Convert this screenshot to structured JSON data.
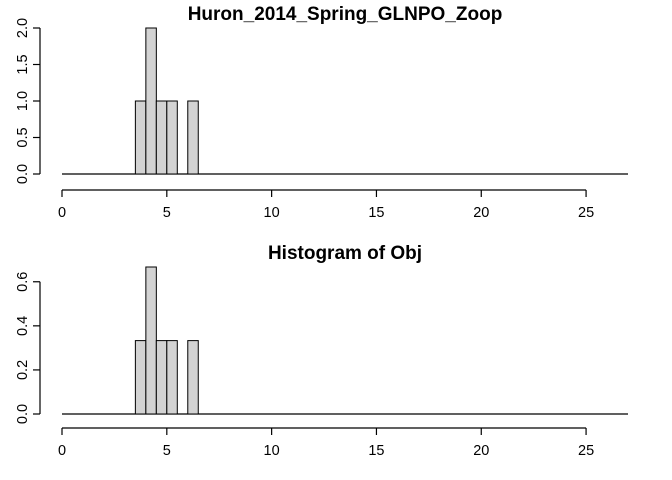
{
  "colors": {
    "bar_fill": "#d3d3d3",
    "bar_stroke": "#000000",
    "background": "#ffffff"
  },
  "chart_data": [
    {
      "type": "bar",
      "title": "Huron_2014_Spring_GLNPO_Zoop",
      "xlabel": "",
      "ylabel": "",
      "bin_width": 0.5,
      "bins": [
        {
          "x0": 3.5,
          "x1": 4.0,
          "value": 1
        },
        {
          "x0": 4.0,
          "x1": 4.5,
          "value": 2
        },
        {
          "x0": 4.5,
          "x1": 5.0,
          "value": 1
        },
        {
          "x0": 5.0,
          "x1": 5.5,
          "value": 1
        },
        {
          "x0": 5.5,
          "x1": 6.0,
          "value": 0
        },
        {
          "x0": 6.0,
          "x1": 6.5,
          "value": 1
        }
      ],
      "xlim": [
        0,
        27
      ],
      "ylim": [
        0,
        2
      ],
      "xticks": [
        0,
        5,
        10,
        15,
        20,
        25
      ],
      "xtick_labels": [
        "0",
        "5",
        "10",
        "15",
        "20",
        "25"
      ],
      "yticks": [
        0,
        0.5,
        1,
        1.5,
        2
      ],
      "ytick_labels": [
        "0.0",
        "0.5",
        "1.0",
        "1.5",
        "2.0"
      ],
      "grid": false,
      "legend": "none"
    },
    {
      "type": "bar",
      "title": "Histogram of Obj",
      "xlabel": "",
      "ylabel": "",
      "bin_width": 0.5,
      "bins": [
        {
          "x0": 3.5,
          "x1": 4.0,
          "value": 0.333
        },
        {
          "x0": 4.0,
          "x1": 4.5,
          "value": 0.667
        },
        {
          "x0": 4.5,
          "x1": 5.0,
          "value": 0.333
        },
        {
          "x0": 5.0,
          "x1": 5.5,
          "value": 0.333
        },
        {
          "x0": 5.5,
          "x1": 6.0,
          "value": 0
        },
        {
          "x0": 6.0,
          "x1": 6.5,
          "value": 0.333
        }
      ],
      "xlim": [
        0,
        27
      ],
      "ylim": [
        0,
        0.667
      ],
      "xticks": [
        0,
        5,
        10,
        15,
        20,
        25
      ],
      "xtick_labels": [
        "0",
        "5",
        "10",
        "15",
        "20",
        "25"
      ],
      "yticks": [
        0,
        0.2,
        0.4,
        0.6
      ],
      "ytick_labels": [
        "0.0",
        "0.2",
        "0.4",
        "0.6"
      ],
      "grid": false,
      "legend": "none"
    }
  ]
}
